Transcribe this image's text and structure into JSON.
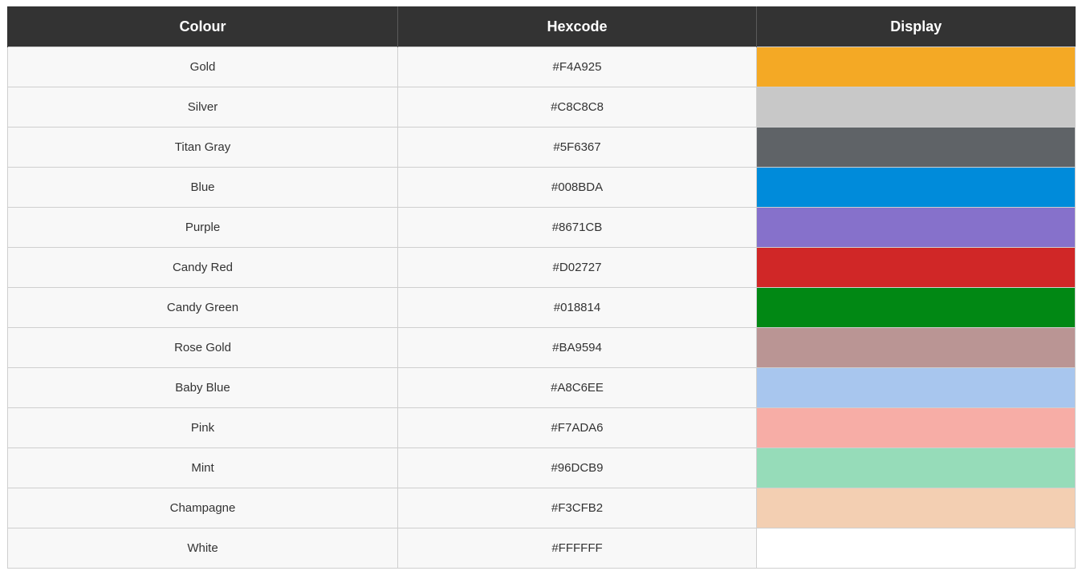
{
  "table": {
    "headers": [
      "Colour",
      "Hexcode",
      "Display"
    ],
    "rows": [
      {
        "name": "Gold",
        "hex": "#F4A925",
        "swatch": "#F4A925"
      },
      {
        "name": "Silver",
        "hex": "#C8C8C8",
        "swatch": "#C8C8C8"
      },
      {
        "name": "Titan Gray",
        "hex": "#5F6367",
        "swatch": "#5F6367"
      },
      {
        "name": "Blue",
        "hex": "#008BDA",
        "swatch": "#008BDA"
      },
      {
        "name": "Purple",
        "hex": "#8671CB",
        "swatch": "#8671CB"
      },
      {
        "name": "Candy Red",
        "hex": "#D02727",
        "swatch": "#D02727"
      },
      {
        "name": "Candy Green",
        "hex": "#018814",
        "swatch": "#018814"
      },
      {
        "name": "Rose Gold",
        "hex": "#BA9594",
        "swatch": "#BA9594"
      },
      {
        "name": "Baby Blue",
        "hex": "#A8C6EE",
        "swatch": "#A8C6EE"
      },
      {
        "name": "Pink",
        "hex": "#F7ADA6",
        "swatch": "#F7ADA6"
      },
      {
        "name": "Mint",
        "hex": "#96DCB9",
        "swatch": "#96DCB9"
      },
      {
        "name": "Champagne",
        "hex": "#F3CFB2",
        "swatch": "#F3CFB2"
      },
      {
        "name": "White",
        "hex": "#FFFFFF",
        "swatch": "#FFFFFF"
      }
    ]
  },
  "colors": {
    "header_bg": "#333333",
    "header_text": "#ffffff",
    "row_bg": "#f8f8f8"
  }
}
